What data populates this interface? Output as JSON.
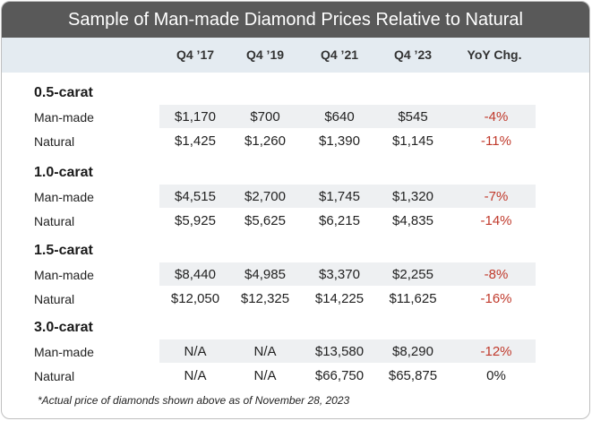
{
  "title": "Sample of Man-made Diamond Prices Relative to Natural",
  "columns": [
    "Q4 ’17",
    "Q4 ’19",
    "Q4 ’21",
    "Q4 ’23",
    "YoY Chg."
  ],
  "groups": [
    {
      "name": "0.5-carat",
      "rows": [
        {
          "label": "Man-made",
          "values": [
            "$1,170",
            "$700",
            "$640",
            "$545"
          ],
          "yoy": "-4%"
        },
        {
          "label": "Natural",
          "values": [
            "$1,425",
            "$1,260",
            "$1,390",
            "$1,145"
          ],
          "yoy": "-11%"
        }
      ]
    },
    {
      "name": "1.0-carat",
      "rows": [
        {
          "label": "Man-made",
          "values": [
            "$4,515",
            "$2,700",
            "$1,745",
            "$1,320"
          ],
          "yoy": "-7%"
        },
        {
          "label": "Natural",
          "values": [
            "$5,925",
            "$5,625",
            "$6,215",
            "$4,835"
          ],
          "yoy": "-14%"
        }
      ]
    },
    {
      "name": "1.5-carat",
      "rows": [
        {
          "label": "Man-made",
          "values": [
            "$8,440",
            "$4,985",
            "$3,370",
            "$2,255"
          ],
          "yoy": "-8%"
        },
        {
          "label": "Natural",
          "values": [
            "$12,050",
            "$12,325",
            "$14,225",
            "$11,625"
          ],
          "yoy": "-16%"
        }
      ]
    },
    {
      "name": "3.0-carat",
      "rows": [
        {
          "label": "Man-made",
          "values": [
            "N/A",
            "N/A",
            "$13,580",
            "$8,290"
          ],
          "yoy": "-12%"
        },
        {
          "label": "Natural",
          "values": [
            "N/A",
            "N/A",
            "$66,750",
            "$65,875"
          ],
          "yoy": "0%"
        }
      ]
    }
  ],
  "footnote": "*Actual price of diamonds shown above as of November 28, 2023",
  "colors": {
    "title_bg": "#595959",
    "header_bg": "#e4ebf1",
    "stripe": "#eef0f2",
    "negative": "#c0392b"
  }
}
